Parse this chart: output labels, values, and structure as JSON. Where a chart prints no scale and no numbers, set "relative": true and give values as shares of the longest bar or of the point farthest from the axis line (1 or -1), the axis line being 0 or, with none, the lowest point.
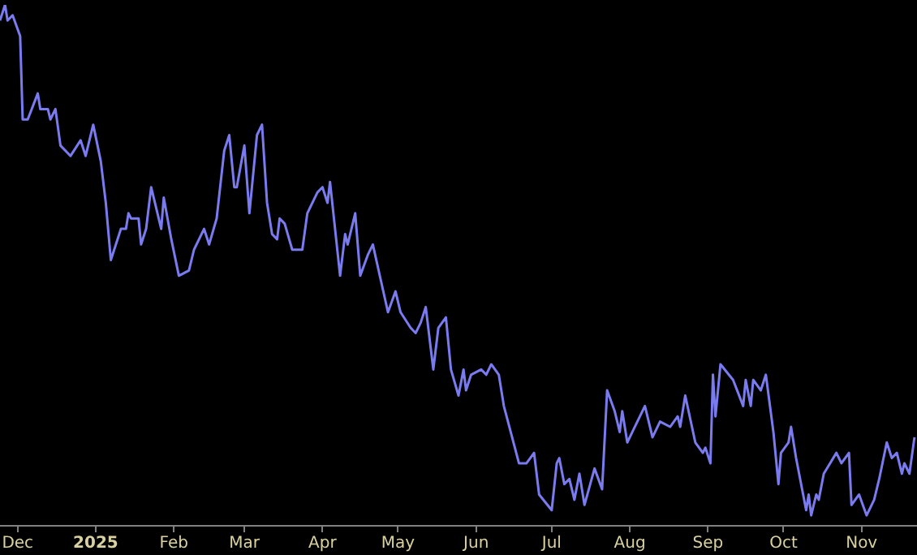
{
  "chart_data": {
    "type": "line",
    "relative": true,
    "legend": false,
    "grid": false,
    "marker": "none",
    "line_style": "solid",
    "xlim": [
      "2024-11-24",
      "2025-11-23"
    ],
    "xticks": [
      {
        "value": "2024-12-01",
        "label": "Dec"
      },
      {
        "value": "2025-01-01",
        "label": "2025"
      },
      {
        "value": "2025-02-01",
        "label": "Feb"
      },
      {
        "value": "2025-03-01",
        "label": "Mar"
      },
      {
        "value": "2025-04-01",
        "label": "Apr"
      },
      {
        "value": "2025-05-01",
        "label": "May"
      },
      {
        "value": "2025-06-01",
        "label": "Jun"
      },
      {
        "value": "2025-07-01",
        "label": "Jul"
      },
      {
        "value": "2025-08-01",
        "label": "Aug"
      },
      {
        "value": "2025-09-01",
        "label": "Sep"
      },
      {
        "value": "2025-10-01",
        "label": "Oct"
      },
      {
        "value": "2025-11-01",
        "label": "Nov"
      }
    ],
    "x": [
      "2024-11-24",
      "2024-11-26",
      "2024-11-27",
      "2024-11-29",
      "2024-12-02",
      "2024-12-03",
      "2024-12-05",
      "2024-12-09",
      "2024-12-10",
      "2024-12-13",
      "2024-12-14",
      "2024-12-16",
      "2024-12-18",
      "2024-12-22",
      "2024-12-26",
      "2024-12-28",
      "2024-12-31",
      "2025-01-03",
      "2025-01-05",
      "2025-01-07",
      "2025-01-11",
      "2025-01-13",
      "2025-01-14",
      "2025-01-15",
      "2025-01-18",
      "2025-01-19",
      "2025-01-21",
      "2025-01-23",
      "2025-01-27",
      "2025-01-28",
      "2025-01-31",
      "2025-02-03",
      "2025-02-07",
      "2025-02-09",
      "2025-02-13",
      "2025-02-15",
      "2025-02-18",
      "2025-02-21",
      "2025-02-23",
      "2025-02-25",
      "2025-02-26",
      "2025-03-01",
      "2025-03-03",
      "2025-03-06",
      "2025-03-08",
      "2025-03-10",
      "2025-03-12",
      "2025-03-14",
      "2025-03-15",
      "2025-03-17",
      "2025-03-20",
      "2025-03-24",
      "2025-03-26",
      "2025-03-30",
      "2025-04-01",
      "2025-04-03",
      "2025-04-04",
      "2025-04-08",
      "2025-04-10",
      "2025-04-11",
      "2025-04-14",
      "2025-04-16",
      "2025-04-19",
      "2025-04-21",
      "2025-04-27",
      "2025-04-30",
      "2025-05-02",
      "2025-05-06",
      "2025-05-08",
      "2025-05-10",
      "2025-05-12",
      "2025-05-15",
      "2025-05-17",
      "2025-05-20",
      "2025-05-22",
      "2025-05-25",
      "2025-05-27",
      "2025-05-28",
      "2025-05-30",
      "2025-06-03",
      "2025-06-05",
      "2025-06-07",
      "2025-06-10",
      "2025-06-12",
      "2025-06-18",
      "2025-06-21",
      "2025-06-24",
      "2025-06-26",
      "2025-07-01",
      "2025-07-03",
      "2025-07-04",
      "2025-07-06",
      "2025-07-08",
      "2025-07-10",
      "2025-07-12",
      "2025-07-14",
      "2025-07-18",
      "2025-07-21",
      "2025-07-23",
      "2025-07-26",
      "2025-07-28",
      "2025-07-29",
      "2025-07-31",
      "2025-08-02",
      "2025-08-07",
      "2025-08-10",
      "2025-08-13",
      "2025-08-17",
      "2025-08-20",
      "2025-08-21",
      "2025-08-23",
      "2025-08-27",
      "2025-08-30",
      "2025-08-31",
      "2025-09-02",
      "2025-09-03",
      "2025-09-04",
      "2025-09-06",
      "2025-09-11",
      "2025-09-15",
      "2025-09-16",
      "2025-09-18",
      "2025-09-19",
      "2025-09-22",
      "2025-09-24",
      "2025-09-27",
      "2025-09-29",
      "2025-09-30",
      "2025-10-03",
      "2025-10-04",
      "2025-10-06",
      "2025-10-10",
      "2025-10-11",
      "2025-10-12",
      "2025-10-14",
      "2025-10-15",
      "2025-10-17",
      "2025-10-22",
      "2025-10-24",
      "2025-10-27",
      "2025-10-28",
      "2025-10-31",
      "2025-11-03",
      "2025-11-06",
      "2025-11-08",
      "2025-11-11",
      "2025-11-13",
      "2025-11-15",
      "2025-11-17",
      "2025-11-18",
      "2025-11-20",
      "2025-11-22"
    ],
    "series": [
      {
        "color": "#7b7bf0",
        "values": [
          0.97,
          1.0,
          0.97,
          0.98,
          0.94,
          0.78,
          0.78,
          0.83,
          0.8,
          0.8,
          0.78,
          0.8,
          0.73,
          0.71,
          0.74,
          0.71,
          0.77,
          0.7,
          0.62,
          0.51,
          0.57,
          0.57,
          0.6,
          0.59,
          0.59,
          0.54,
          0.57,
          0.65,
          0.57,
          0.63,
          0.55,
          0.48,
          0.49,
          0.53,
          0.57,
          0.54,
          0.59,
          0.72,
          0.75,
          0.65,
          0.65,
          0.73,
          0.6,
          0.75,
          0.77,
          0.62,
          0.56,
          0.55,
          0.59,
          0.58,
          0.53,
          0.53,
          0.6,
          0.64,
          0.65,
          0.62,
          0.66,
          0.48,
          0.56,
          0.54,
          0.6,
          0.48,
          0.52,
          0.54,
          0.41,
          0.45,
          0.41,
          0.38,
          0.37,
          0.39,
          0.42,
          0.3,
          0.38,
          0.4,
          0.3,
          0.25,
          0.3,
          0.26,
          0.29,
          0.3,
          0.29,
          0.31,
          0.29,
          0.23,
          0.12,
          0.12,
          0.14,
          0.06,
          0.03,
          0.12,
          0.13,
          0.08,
          0.09,
          0.05,
          0.1,
          0.04,
          0.11,
          0.07,
          0.26,
          0.22,
          0.18,
          0.22,
          0.16,
          0.18,
          0.23,
          0.17,
          0.2,
          0.19,
          0.21,
          0.19,
          0.25,
          0.16,
          0.14,
          0.15,
          0.12,
          0.29,
          0.21,
          0.31,
          0.28,
          0.23,
          0.28,
          0.23,
          0.28,
          0.26,
          0.29,
          0.18,
          0.08,
          0.14,
          0.16,
          0.19,
          0.13,
          0.03,
          0.06,
          0.02,
          0.06,
          0.05,
          0.1,
          0.14,
          0.12,
          0.14,
          0.04,
          0.06,
          0.02,
          0.05,
          0.09,
          0.16,
          0.13,
          0.14,
          0.1,
          0.12,
          0.1,
          0.17
        ]
      }
    ]
  }
}
